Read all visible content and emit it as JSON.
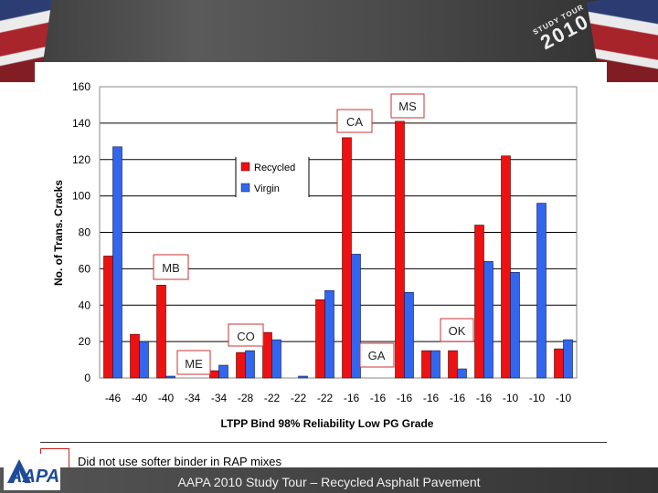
{
  "header": {
    "logo_line1": "STUDY TOUR",
    "logo_line2": "2010"
  },
  "chart_data": {
    "type": "bar",
    "xlabel": "LTPP Bind 98% Reliability Low PG Grade",
    "ylabel": "No. of Trans. Cracks",
    "ylim": [
      0,
      160
    ],
    "yticks": [
      0,
      20,
      40,
      60,
      80,
      100,
      120,
      140,
      160
    ],
    "grid": true,
    "legend_position": "top-center",
    "categories": [
      "-46",
      "-40",
      "-40",
      "-34",
      "-34",
      "-28",
      "-22",
      "-22",
      "-22",
      "-16",
      "-16",
      "-16",
      "-16",
      "-16",
      "-16",
      "-10",
      "-10",
      "-10"
    ],
    "series": [
      {
        "name": "Recycled",
        "color": "#ee1111",
        "values": [
          67,
          24,
          51,
          null,
          4,
          14,
          25,
          null,
          43,
          132,
          null,
          141,
          15,
          15,
          84,
          122,
          null,
          16
        ]
      },
      {
        "name": "Virgin",
        "color": "#3366ee",
        "values": [
          127,
          20,
          1,
          null,
          7,
          15,
          21,
          1,
          48,
          68,
          null,
          47,
          15,
          5,
          64,
          58,
          96,
          21
        ]
      }
    ],
    "annotations": [
      "MB",
      "ME",
      "CO",
      "CA",
      "MS",
      "GA",
      "OK"
    ]
  },
  "note": {
    "text": "Did not use softer binder in RAP mixes"
  },
  "footer": {
    "text": "AAPA 2010 Study Tour – Recycled Asphalt Pavement",
    "logo": "AAPA"
  }
}
